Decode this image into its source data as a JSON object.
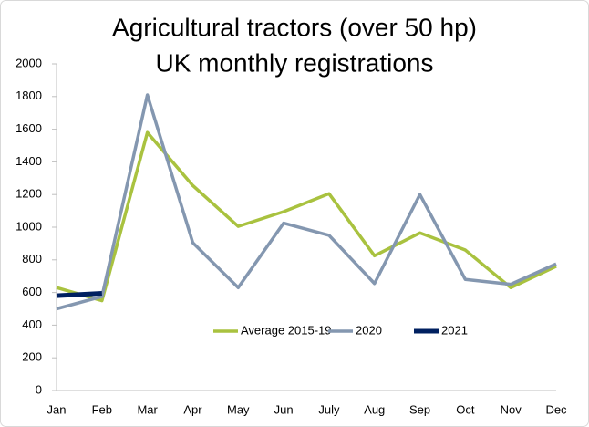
{
  "chart_data": {
    "type": "line",
    "title": "Agricultural tractors (over 50 hp)",
    "subtitle": "UK monthly registrations",
    "categories": [
      "Jan",
      "Feb",
      "Mar",
      "Apr",
      "May",
      "Jun",
      "July",
      "Aug",
      "Sep",
      "Oct",
      "Nov",
      "Dec"
    ],
    "series": [
      {
        "name": "Average 2015-19",
        "color": "#a9c23f",
        "values": [
          630,
          550,
          1580,
          1255,
          1005,
          1095,
          1205,
          825,
          965,
          860,
          630,
          760
        ]
      },
      {
        "name": "2020",
        "color": "#8497b0",
        "values": [
          500,
          575,
          1810,
          905,
          630,
          1025,
          950,
          655,
          1200,
          680,
          650,
          775
        ]
      },
      {
        "name": "2021",
        "color": "#002060",
        "values": [
          580,
          595,
          null,
          null,
          null,
          null,
          null,
          null,
          null,
          null,
          null,
          null
        ]
      }
    ],
    "ylim": [
      0,
      2000
    ],
    "yticks": [
      0,
      200,
      400,
      600,
      800,
      1000,
      1200,
      1400,
      1600,
      1800,
      2000
    ],
    "grid": false,
    "legend": "inside-bottom"
  }
}
